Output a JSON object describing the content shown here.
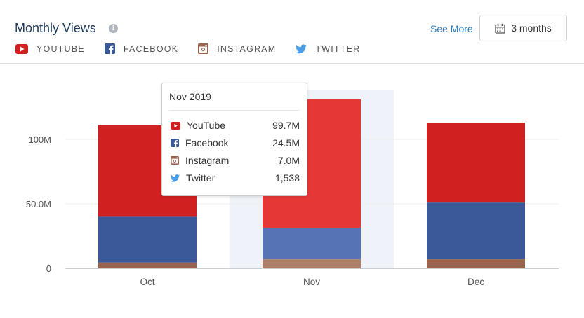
{
  "header": {
    "title": "Monthly Views",
    "info_icon": "info-icon",
    "see_more_label": "See More",
    "range_label": "3 months"
  },
  "legend": [
    {
      "label": "YOUTUBE",
      "icon": "youtube-icon",
      "color": "#d0201f"
    },
    {
      "label": "FACEBOOK",
      "icon": "facebook-icon",
      "color": "#3b5998"
    },
    {
      "label": "INSTAGRAM",
      "icon": "instagram-icon",
      "color": "#9a6350"
    },
    {
      "label": "TWITTER",
      "icon": "twitter-icon",
      "color": "#4a9de6"
    }
  ],
  "tooltip": {
    "title": "Nov 2019",
    "rows": [
      {
        "name": "YouTube",
        "value": "99.7M",
        "icon": "youtube-icon"
      },
      {
        "name": "Facebook",
        "value": "24.5M",
        "icon": "facebook-icon"
      },
      {
        "name": "Instagram",
        "value": "7.0M",
        "icon": "instagram-icon"
      },
      {
        "name": "Twitter",
        "value": "1,538",
        "icon": "twitter-icon"
      }
    ]
  },
  "chart_data": {
    "type": "bar",
    "stacked": true,
    "categories": [
      "Oct",
      "Nov",
      "Dec"
    ],
    "highlighted_category": "Nov",
    "series": [
      {
        "name": "Twitter",
        "color": "#4a9de6",
        "values": [
          0.0015,
          0.0015,
          0.0015
        ]
      },
      {
        "name": "Instagram",
        "color": "#9a6350",
        "highlight_color": "#b07f6c",
        "values": [
          4.5,
          7.0,
          7.0
        ]
      },
      {
        "name": "Facebook",
        "color": "#3b5998",
        "highlight_color": "#5573b5",
        "values": [
          35.5,
          24.5,
          44.0
        ]
      },
      {
        "name": "YouTube",
        "color": "#d0201f",
        "highlight_color": "#e63737",
        "values": [
          71.0,
          99.7,
          62.0
        ]
      }
    ],
    "y_ticks": [
      {
        "value": 0,
        "label": "0"
      },
      {
        "value": 50,
        "label": "50.0M"
      },
      {
        "value": 100,
        "label": "100M"
      }
    ],
    "ylim": [
      0,
      140
    ],
    "units": "M",
    "title": "Monthly Views",
    "grid": true
  }
}
